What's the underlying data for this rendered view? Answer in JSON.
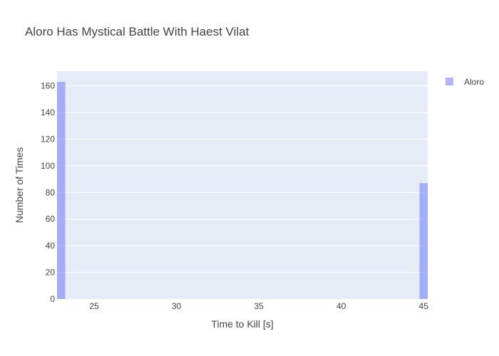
{
  "chart_data": {
    "type": "bar",
    "title": "Aloro Has Mystical Battle With Haest Vilat",
    "xlabel": "Time to Kill [s]",
    "ylabel": "Number of Times",
    "xlim": [
      22.75,
      45.25
    ],
    "ylim": [
      0,
      171
    ],
    "xticks": [
      25,
      30,
      35,
      40,
      45
    ],
    "yticks": [
      0,
      20,
      40,
      60,
      80,
      100,
      120,
      140,
      160
    ],
    "bin_width": 0.5,
    "series": [
      {
        "name": "Aloro",
        "color": "#636efa",
        "opacity": 0.5,
        "bins": [
          {
            "x": 23,
            "count": 163
          },
          {
            "x": 45,
            "count": 87
          }
        ]
      }
    ],
    "legend_position": "top-right"
  },
  "colors": {
    "plot_background": "#e5ecf6",
    "gridline": "#ffffff",
    "text": "#444444"
  }
}
